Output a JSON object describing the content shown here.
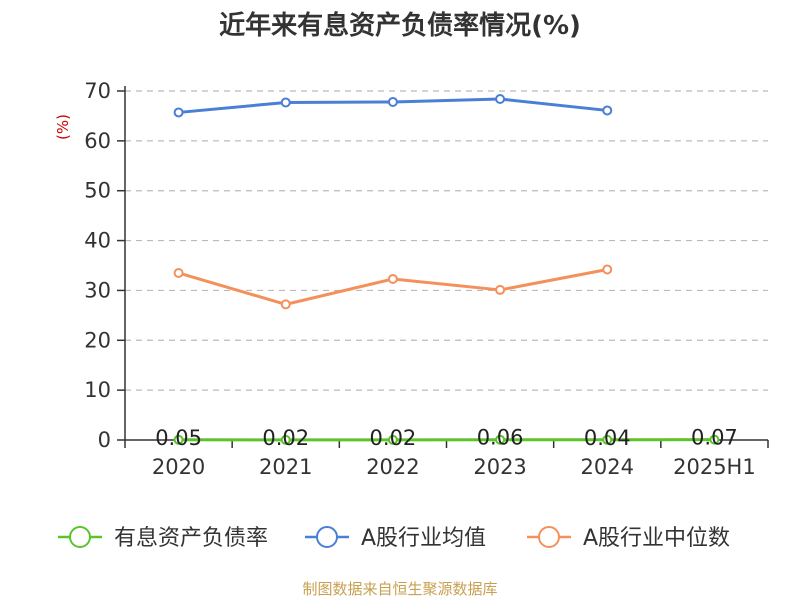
{
  "chart_data": {
    "type": "line",
    "title": "近年来有息资产负债率情况(%)",
    "ylabel": "(%)",
    "ylim": [
      0,
      70
    ],
    "yticks": [
      0,
      10,
      20,
      30,
      40,
      50,
      60,
      70
    ],
    "grid": true,
    "legend_position": "bottom",
    "categories": [
      "2020",
      "2021",
      "2022",
      "2023",
      "2024",
      "2025H1"
    ],
    "series": [
      {
        "name": "有息资产负债率",
        "color": "#5cc32b",
        "values": [
          0.05,
          0.02,
          0.02,
          0.06,
          0.04,
          0.07
        ],
        "data_labels": [
          "0.05",
          "0.02",
          "0.02",
          "0.06",
          "0.04",
          "0.07"
        ]
      },
      {
        "name": "A股行业均值",
        "color": "#4a7fd6",
        "values": [
          65.7,
          67.7,
          67.8,
          68.4,
          66.1,
          null
        ]
      },
      {
        "name": "A股行业中位数",
        "color": "#f4905c",
        "values": [
          33.5,
          27.2,
          32.3,
          30.1,
          34.2,
          null
        ]
      }
    ]
  },
  "source": "制图数据来自恒生聚源数据库"
}
